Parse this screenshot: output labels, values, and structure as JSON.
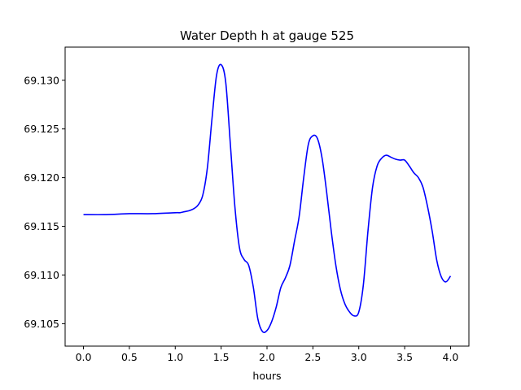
{
  "chart_data": {
    "type": "line",
    "title": "Water Depth h at gauge 525",
    "xlabel": "hours",
    "ylabel": "",
    "xlim": [
      -0.2,
      4.2
    ],
    "ylim": [
      69.1027,
      69.1334
    ],
    "xticks": [
      0.0,
      0.5,
      1.0,
      1.5,
      2.0,
      2.5,
      3.0,
      3.5,
      4.0
    ],
    "xtick_labels": [
      "0.0",
      "0.5",
      "1.0",
      "1.5",
      "2.0",
      "2.5",
      "3.0",
      "3.5",
      "4.0"
    ],
    "yticks": [
      69.105,
      69.11,
      69.115,
      69.12,
      69.125,
      69.13
    ],
    "ytick_labels": [
      "69.105",
      "69.110",
      "69.115",
      "69.120",
      "69.125",
      "69.130"
    ],
    "grid": false,
    "series": [
      {
        "color": "#0000ff",
        "x": [
          0.0,
          0.25,
          0.5,
          0.75,
          1.0,
          1.05,
          1.1,
          1.15,
          1.2,
          1.25,
          1.3,
          1.35,
          1.4,
          1.45,
          1.5,
          1.55,
          1.6,
          1.65,
          1.7,
          1.75,
          1.8,
          1.85,
          1.9,
          1.95,
          2.0,
          2.05,
          2.1,
          2.15,
          2.2,
          2.25,
          2.3,
          2.35,
          2.4,
          2.45,
          2.5,
          2.55,
          2.6,
          2.65,
          2.7,
          2.75,
          2.8,
          2.85,
          2.9,
          2.95,
          3.0,
          3.05,
          3.1,
          3.15,
          3.2,
          3.25,
          3.3,
          3.35,
          3.4,
          3.45,
          3.5,
          3.55,
          3.6,
          3.65,
          3.7,
          3.75,
          3.8,
          3.85,
          3.9,
          3.95,
          4.0
        ],
        "y": [
          69.1162,
          69.1162,
          69.1163,
          69.1163,
          69.1164,
          69.1164,
          69.1165,
          69.1166,
          69.1168,
          69.1172,
          69.1182,
          69.121,
          69.126,
          69.1305,
          69.1316,
          69.1298,
          69.1235,
          69.117,
          69.1128,
          69.1116,
          69.111,
          69.1088,
          69.1055,
          69.1042,
          69.1043,
          69.1052,
          69.1067,
          69.1087,
          69.1097,
          69.111,
          69.1135,
          69.116,
          69.12,
          69.1234,
          69.1243,
          69.124,
          69.122,
          69.1185,
          69.1145,
          69.111,
          69.1085,
          69.107,
          69.1062,
          69.1058,
          69.1062,
          69.109,
          69.1145,
          69.119,
          69.1212,
          69.122,
          69.1223,
          69.1221,
          69.1219,
          69.1218,
          69.1218,
          69.1212,
          69.1205,
          69.12,
          69.119,
          69.117,
          69.1145,
          69.1115,
          69.1098,
          69.1093,
          69.1099
        ]
      }
    ]
  }
}
